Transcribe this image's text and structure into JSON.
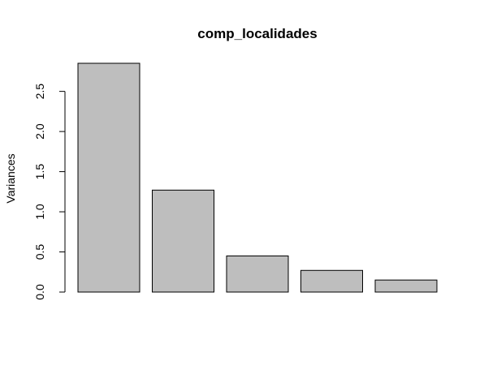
{
  "chart_data": {
    "type": "bar",
    "title": "comp_localidades",
    "xlabel": "",
    "ylabel": "Variances",
    "categories": [
      "",
      "",
      "",
      "",
      ""
    ],
    "values": [
      2.85,
      1.27,
      0.45,
      0.27,
      0.15
    ],
    "ylim": [
      0,
      2.85
    ],
    "yticks": [
      0.0,
      0.5,
      1.0,
      1.5,
      2.0,
      2.5
    ],
    "ytick_labels": [
      "0.0",
      "0.5",
      "1.0",
      "1.5",
      "2.0",
      "2.5"
    ],
    "bar_color": "#bebebe",
    "bar_border_color": "#000000",
    "grid": false,
    "legend": "none"
  }
}
